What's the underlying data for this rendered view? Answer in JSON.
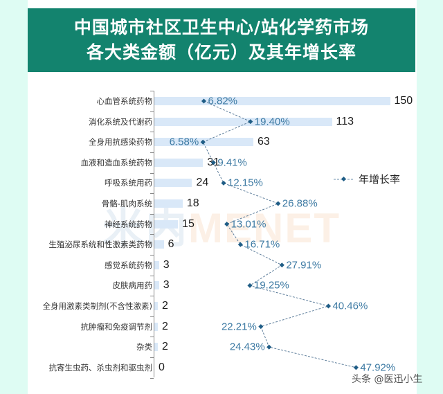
{
  "header": {
    "title_line1": "中国城市社区卫生中心/站化学药市场",
    "title_line2": "各大类金额（亿元）及其年增长率"
  },
  "legend": {
    "label": "年增长率"
  },
  "watermark": {
    "part1": "米内",
    "part2": "MENET"
  },
  "credit": "头条 @医迅小生",
  "colors": {
    "header": "#13836e",
    "bar": "#d9e8f8",
    "line": "#1f5d86",
    "pct_text": "#3d7aa3",
    "background": "#defcf3"
  },
  "chart_data": {
    "type": "bar",
    "title": "中国城市社区卫生中心/站化学药市场各大类金额（亿元）及其年增长率",
    "orientation": "horizontal",
    "categories": [
      "心血管系统药物",
      "消化系统及代谢药",
      "全身用抗感染药物",
      "血液和造血系统药物",
      "呼吸系统用药",
      "骨骼-肌肉系统",
      "神经系统药物",
      "生殖泌尿系统和性激素类药物",
      "感觉系统药物",
      "皮肤病用药",
      "全身用激素类制剂(不含性激素)",
      "抗肿瘤和免疫调节剂",
      "杂类",
      "抗寄生虫药、杀虫剂和驱虫剂"
    ],
    "series": [
      {
        "name": "金额（亿元）",
        "type": "bar",
        "values": [
          150,
          113,
          63,
          31,
          24,
          18,
          15,
          6,
          3,
          3,
          2,
          2,
          2,
          0
        ]
      },
      {
        "name": "年增长率",
        "type": "line",
        "unit": "%",
        "values": [
          6.82,
          19.4,
          6.58,
          9.41,
          12.15,
          26.88,
          13.01,
          16.71,
          27.91,
          19.25,
          40.46,
          22.21,
          24.43,
          47.92
        ],
        "labels": [
          "6.82%",
          "19.40%",
          "6.58%",
          "9.41%",
          "12.15%",
          "26.88%",
          "13.01%",
          "16.71%",
          "27.91%",
          "19.25%",
          "40.46%",
          "22.21%",
          "24.43%",
          "47.92%"
        ]
      }
    ],
    "xlabel": "",
    "ylabel": "",
    "grid": false,
    "legend_position": "right-middle"
  }
}
